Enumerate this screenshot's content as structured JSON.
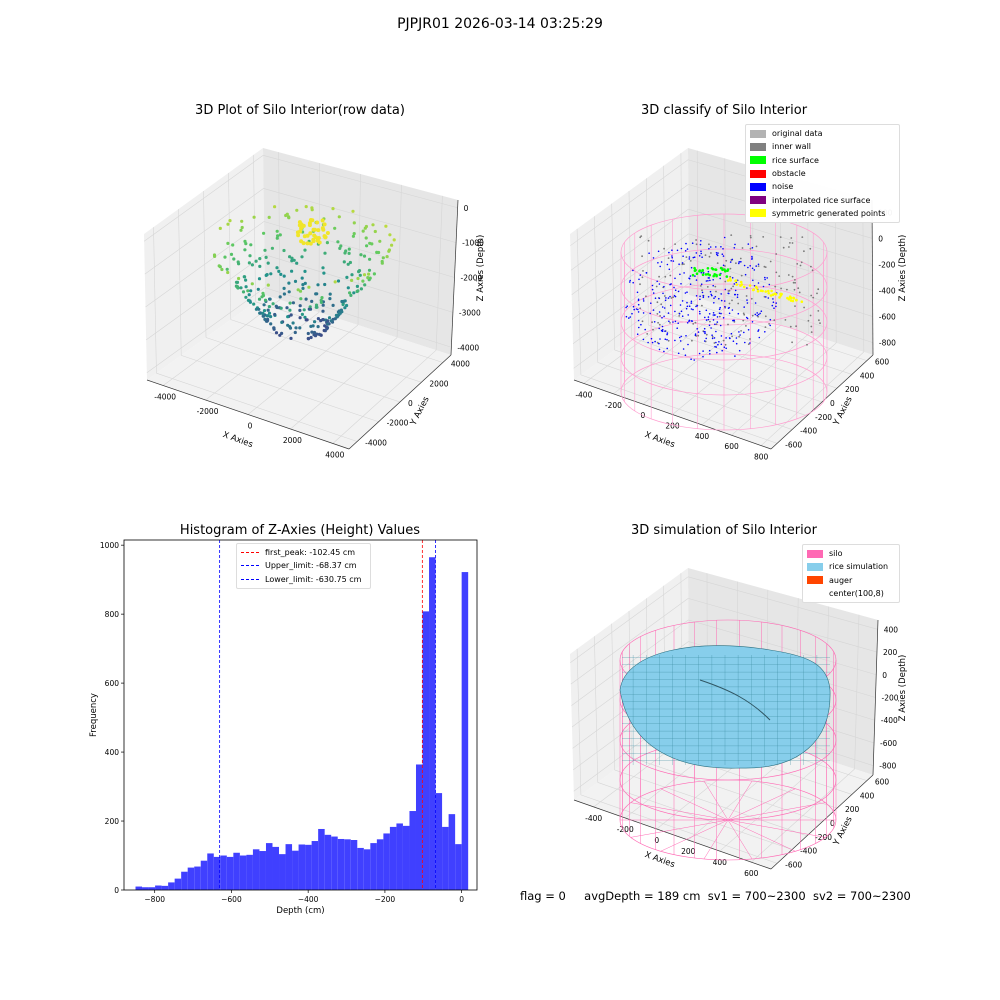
{
  "figure": {
    "title": "PJPJR01 2026-03-14 03:25:29",
    "status": {
      "flag": "flag = 0",
      "avg": "avgDepth = 189 cm",
      "sv1": "sv1 = 700~2300",
      "sv2": "sv2 = 700~2300"
    }
  },
  "chart_data": [
    {
      "type": "scatter",
      "projection": "3d",
      "title": "3D Plot of Silo Interior(row data)",
      "xlabel": "X Axies",
      "ylabel": "Y Axies",
      "zlabel": "Z Axies (Depth)",
      "xticks": [
        "-4000",
        "-2000",
        "0",
        "2000",
        "4000"
      ],
      "yticks": [
        "-4000",
        "-2000",
        "0",
        "2000",
        "4000"
      ],
      "zticks": [
        "0",
        "-1000",
        "-2000",
        "-3000",
        "-4000"
      ],
      "xlim": [
        -5000,
        5000
      ],
      "ylim": [
        -5000,
        5000
      ],
      "zlim": [
        -4600,
        200
      ],
      "colormap": "viridis",
      "grid": true
    },
    {
      "type": "scatter",
      "projection": "3d",
      "title": "3D classify of Silo Interior",
      "xlabel": "X Axies",
      "ylabel": "Y Axies",
      "zlabel": "Z Axies (Depth)",
      "xticks": [
        "-400",
        "-200",
        "0",
        "200",
        "400",
        "600",
        "800"
      ],
      "yticks": [
        "-600",
        "-400",
        "-200",
        "0",
        "200",
        "400",
        "600"
      ],
      "zticks": [
        "200",
        "0",
        "-200",
        "-400",
        "-600",
        "-800"
      ],
      "legend_position": "top-right",
      "legend": [
        {
          "label": "original data",
          "color": "#b3b3b3"
        },
        {
          "label": "inner wall",
          "color": "#808080"
        },
        {
          "label": "rice surface",
          "color": "#00ff00"
        },
        {
          "label": "obstacle",
          "color": "#ff0000"
        },
        {
          "label": "noise",
          "color": "#0000ff"
        },
        {
          "label": "interpolated rice surface",
          "color": "#800080"
        },
        {
          "label": "symmetric generated points",
          "color": "#ffff00"
        }
      ],
      "grid": true
    },
    {
      "type": "bar",
      "subtype": "histogram",
      "title": "Histogram of Z-Axies (Height) Values",
      "xlabel": "Depth (cm)",
      "ylabel": "Frequency",
      "xlim": [
        -880,
        40
      ],
      "ylim": [
        0,
        1015
      ],
      "xticks": [
        -800,
        -600,
        -400,
        -200,
        0
      ],
      "yticks": [
        0,
        200,
        400,
        600,
        800,
        1000
      ],
      "color": "#4040ff",
      "bin_start": -850,
      "bin_width": 17,
      "values": [
        10,
        8,
        8,
        13,
        12,
        22,
        33,
        53,
        65,
        68,
        85,
        106,
        96,
        100,
        96,
        108,
        100,
        102,
        118,
        113,
        136,
        125,
        104,
        133,
        114,
        132,
        131,
        142,
        177,
        160,
        155,
        148,
        147,
        145,
        122,
        118,
        136,
        147,
        164,
        183,
        193,
        186,
        229,
        364,
        808,
        965,
        281,
        183,
        220,
        133,
        922
      ],
      "vlines": [
        {
          "label": "first_peak: -102.45 cm",
          "x": -102.45,
          "color": "#ff0000"
        },
        {
          "label": "Upper_limit: -68.37 cm",
          "x": -68.37,
          "color": "#0000ff"
        },
        {
          "label": "Lower_limit: -630.75 cm",
          "x": -630.75,
          "color": "#0000ff"
        }
      ],
      "legend_position": "top-center",
      "grid": false
    },
    {
      "type": "surface",
      "projection": "3d",
      "title": "3D simulation of Silo Interior",
      "xlabel": "X Axies",
      "ylabel": "Y Axies",
      "zlabel": "Z Axies (Depth)",
      "xticks": [
        "-400",
        "-200",
        "0",
        "200",
        "400",
        "600"
      ],
      "yticks": [
        "-600",
        "-400",
        "-200",
        "0",
        "200",
        "400",
        "600"
      ],
      "zticks": [
        "400",
        "200",
        "0",
        "-200",
        "-400",
        "-600",
        "-800"
      ],
      "legend_position": "top-right",
      "legend": [
        {
          "label": "silo",
          "color": "#ff69b4"
        },
        {
          "label": "rice simulation",
          "color": "#87ceeb"
        },
        {
          "label": "auger",
          "color": "#ff4500"
        },
        {
          "label": "center(100,8)",
          "color": "#ffffff"
        }
      ],
      "grid": true
    }
  ]
}
